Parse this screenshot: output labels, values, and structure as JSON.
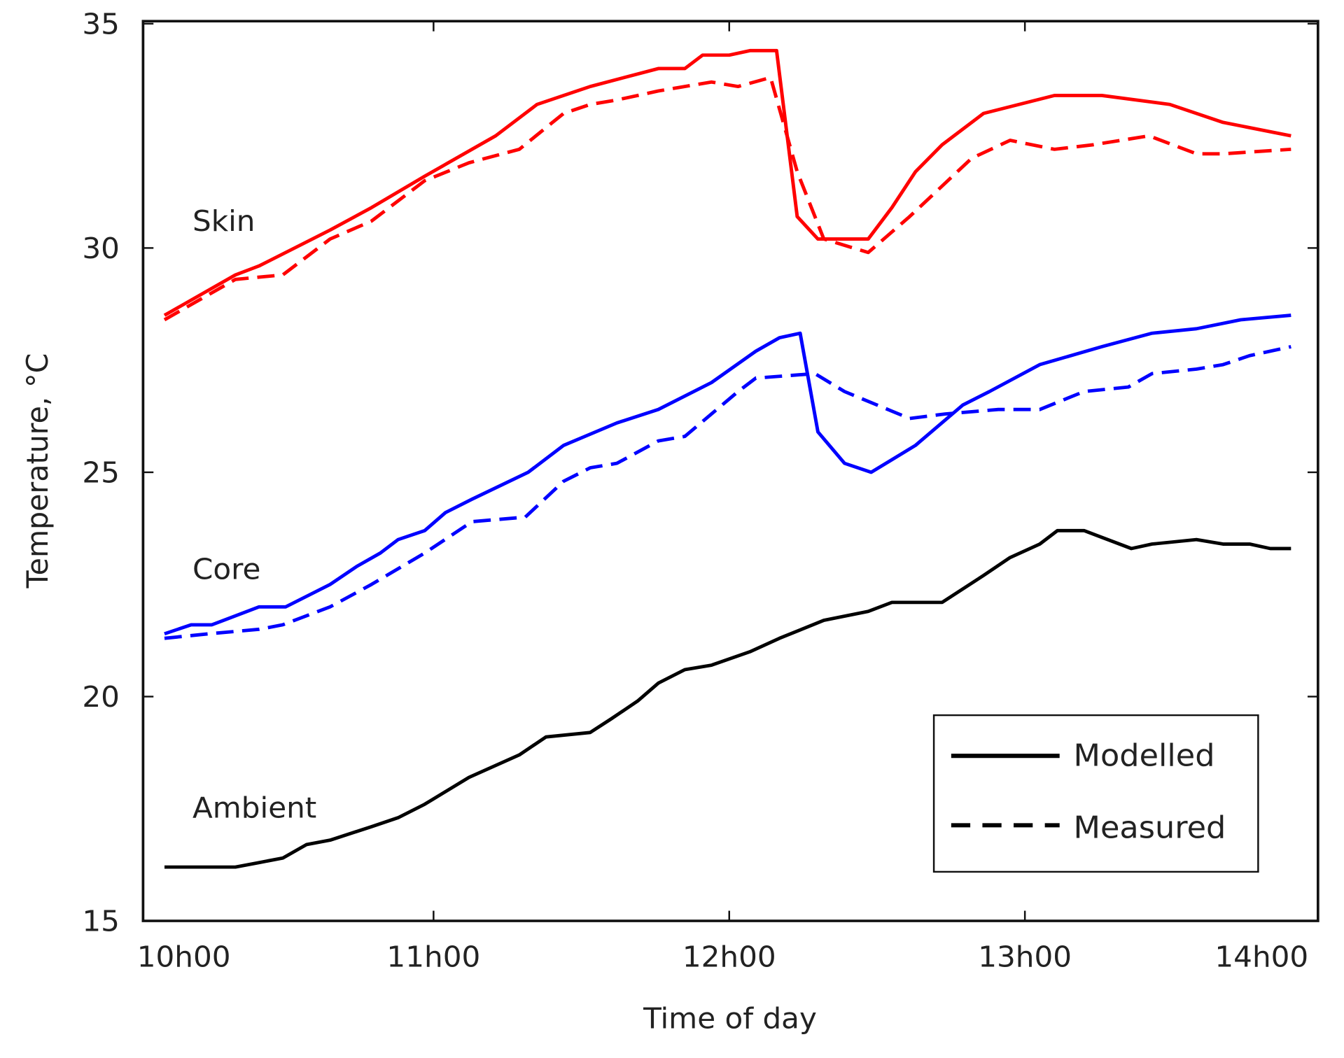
{
  "chart_data": {
    "type": "line",
    "title": "",
    "xlabel": "Time of day",
    "ylabel": "Temperature, °C",
    "xlim": [
      10,
      14
    ],
    "ylim": [
      15,
      35
    ],
    "x_ticks": [
      10,
      11,
      12,
      13,
      14
    ],
    "x_tick_labels": [
      "10h00",
      "11h00",
      "12h00",
      "13h00",
      "14h00"
    ],
    "y_ticks": [
      15,
      20,
      25,
      30,
      35
    ],
    "y_tick_labels": [
      "15",
      "20",
      "25",
      "30",
      "35"
    ],
    "x_units": "hours (decimal)",
    "legend": {
      "placement": "bottom-right",
      "entries": [
        {
          "label": "Modelled",
          "style": "solid"
        },
        {
          "label": "Measured",
          "style": "dashed"
        }
      ]
    },
    "group_labels": {
      "skin": "Skin",
      "core": "Core",
      "ambient": "Ambient"
    },
    "colors": {
      "skin": "#ff0000",
      "core": "#0000ff",
      "ambient": "#000000"
    },
    "series": [
      {
        "name": "Skin modelled",
        "group": "skin",
        "style": "solid",
        "x": [
          10.09,
          10.33,
          10.41,
          10.56,
          10.65,
          10.79,
          10.97,
          11.21,
          11.35,
          11.53,
          11.76,
          11.85,
          11.91,
          12.0,
          12.07,
          12.16,
          12.23,
          12.3,
          12.47,
          12.55,
          12.63,
          12.72,
          12.86,
          13.1,
          13.26,
          13.49,
          13.67,
          13.9
        ],
        "y": [
          28.5,
          29.4,
          29.6,
          30.1,
          30.4,
          30.9,
          31.6,
          32.5,
          33.2,
          33.6,
          34.0,
          34.0,
          34.3,
          34.3,
          34.4,
          34.4,
          30.7,
          30.2,
          30.2,
          30.9,
          31.7,
          32.3,
          33.0,
          33.4,
          33.4,
          33.2,
          32.8,
          32.5
        ]
      },
      {
        "name": "Skin measured",
        "group": "skin",
        "style": "dashed",
        "x": [
          10.09,
          10.33,
          10.49,
          10.65,
          10.79,
          10.97,
          11.12,
          11.29,
          11.44,
          11.53,
          11.62,
          11.76,
          11.94,
          12.03,
          12.14,
          12.23,
          12.32,
          12.47,
          12.61,
          12.82,
          12.95,
          13.1,
          13.23,
          13.42,
          13.58,
          13.67,
          13.9
        ],
        "y": [
          28.4,
          29.3,
          29.4,
          30.2,
          30.6,
          31.5,
          31.9,
          32.2,
          33.0,
          33.2,
          33.3,
          33.5,
          33.7,
          33.6,
          33.8,
          31.7,
          30.2,
          29.9,
          30.7,
          32.0,
          32.4,
          32.2,
          32.3,
          32.5,
          32.1,
          32.1,
          32.2
        ]
      },
      {
        "name": "Core modelled",
        "group": "core",
        "style": "solid",
        "x": [
          10.09,
          10.18,
          10.25,
          10.41,
          10.5,
          10.65,
          10.74,
          10.82,
          10.88,
          10.97,
          11.04,
          11.13,
          11.32,
          11.44,
          11.62,
          11.76,
          11.94,
          12.09,
          12.17,
          12.24,
          12.3,
          12.39,
          12.48,
          12.63,
          12.79,
          12.88,
          13.05,
          13.26,
          13.43,
          13.58,
          13.73,
          13.9
        ],
        "y": [
          21.4,
          21.6,
          21.6,
          22.0,
          22.0,
          22.5,
          22.9,
          23.2,
          23.5,
          23.7,
          24.1,
          24.4,
          25.0,
          25.6,
          26.1,
          26.4,
          27.0,
          27.7,
          28.0,
          28.1,
          25.9,
          25.2,
          25.0,
          25.6,
          26.5,
          26.8,
          27.4,
          27.8,
          28.1,
          28.2,
          28.4,
          28.5
        ]
      },
      {
        "name": "Core measured",
        "group": "core",
        "style": "dashed",
        "x": [
          10.09,
          10.24,
          10.41,
          10.49,
          10.65,
          10.79,
          10.97,
          11.13,
          11.31,
          11.44,
          11.53,
          11.62,
          11.76,
          11.85,
          12.03,
          12.09,
          12.29,
          12.39,
          12.5,
          12.61,
          12.73,
          12.91,
          13.05,
          13.2,
          13.35,
          13.43,
          13.58,
          13.67,
          13.76,
          13.9
        ],
        "y": [
          21.3,
          21.4,
          21.5,
          21.6,
          22.0,
          22.5,
          23.2,
          23.9,
          24.0,
          24.8,
          25.1,
          25.2,
          25.7,
          25.8,
          26.8,
          27.1,
          27.2,
          26.8,
          26.5,
          26.2,
          26.3,
          26.4,
          26.4,
          26.8,
          26.9,
          27.2,
          27.3,
          27.4,
          27.6,
          27.8
        ]
      },
      {
        "name": "Ambient modelled",
        "group": "ambient",
        "style": "solid",
        "x": [
          10.09,
          10.33,
          10.41,
          10.49,
          10.57,
          10.65,
          10.79,
          10.88,
          10.97,
          11.12,
          11.29,
          11.38,
          11.53,
          11.6,
          11.69,
          11.76,
          11.85,
          11.94,
          12.07,
          12.17,
          12.32,
          12.47,
          12.55,
          12.72,
          12.86,
          12.95,
          13.05,
          13.11,
          13.2,
          13.36,
          13.43,
          13.58,
          13.67,
          13.76,
          13.83,
          13.9
        ],
        "y": [
          16.2,
          16.2,
          16.3,
          16.4,
          16.7,
          16.8,
          17.1,
          17.3,
          17.6,
          18.2,
          18.7,
          19.1,
          19.2,
          19.5,
          19.9,
          20.3,
          20.6,
          20.7,
          21.0,
          21.3,
          21.7,
          21.9,
          22.1,
          22.1,
          22.7,
          23.1,
          23.4,
          23.7,
          23.7,
          23.3,
          23.4,
          23.5,
          23.4,
          23.4,
          23.3,
          23.3
        ]
      }
    ]
  }
}
